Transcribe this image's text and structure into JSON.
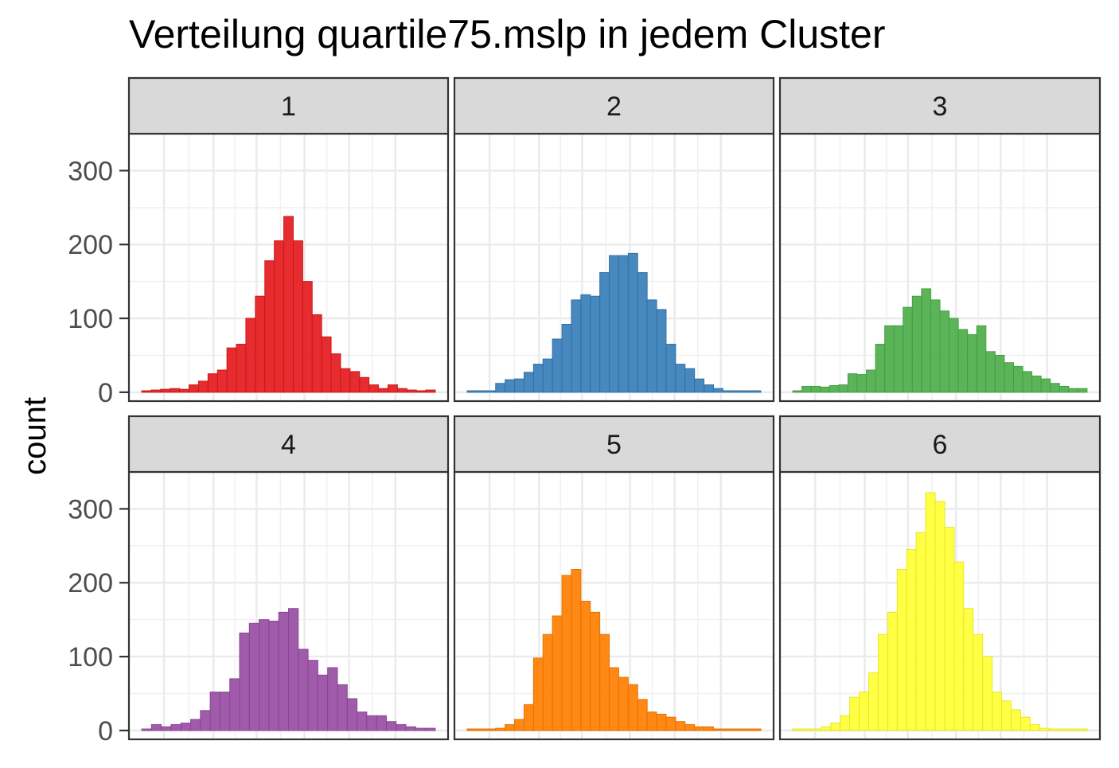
{
  "chart_data": {
    "type": "bar",
    "title": "Verteilung quartile75.mslp in jedem Cluster",
    "xlabel": "",
    "ylabel": "count",
    "ylim": [
      -12,
      350
    ],
    "yticks": [
      0,
      100,
      200,
      300
    ],
    "grid": true,
    "legend": "none",
    "facets": [
      {
        "label": "1",
        "color": "#E41A1C",
        "values": [
          2,
          3,
          4,
          5,
          4,
          10,
          15,
          25,
          30,
          60,
          65,
          100,
          130,
          178,
          205,
          238,
          205,
          150,
          105,
          75,
          52,
          32,
          28,
          20,
          10,
          5,
          10,
          5,
          3,
          2,
          3
        ]
      },
      {
        "label": "2",
        "color": "#377EB8",
        "values": [
          2,
          2,
          2,
          12,
          17,
          18,
          27,
          38,
          45,
          72,
          92,
          125,
          132,
          130,
          162,
          185,
          185,
          188,
          162,
          125,
          112,
          65,
          38,
          32,
          18,
          10,
          5,
          2,
          2,
          2,
          2
        ]
      },
      {
        "label": "3",
        "color": "#4DAF4A",
        "values": [
          2,
          8,
          8,
          7,
          9,
          10,
          25,
          24,
          30,
          65,
          90,
          90,
          115,
          130,
          140,
          125,
          110,
          100,
          85,
          78,
          90,
          55,
          50,
          40,
          35,
          28,
          22,
          18,
          12,
          8,
          5,
          5
        ]
      },
      {
        "label": "4",
        "color": "#984EA3",
        "values": [
          2,
          8,
          5,
          8,
          10,
          15,
          27,
          52,
          52,
          70,
          132,
          145,
          150,
          148,
          160,
          165,
          110,
          95,
          75,
          85,
          62,
          43,
          25,
          20,
          20,
          12,
          8,
          5,
          3,
          3
        ]
      },
      {
        "label": "5",
        "color": "#FF7F00",
        "values": [
          2,
          2,
          2,
          3,
          8,
          15,
          35,
          98,
          130,
          155,
          210,
          218,
          175,
          160,
          130,
          85,
          72,
          62,
          42,
          25,
          22,
          18,
          12,
          8,
          5,
          5,
          2,
          2,
          2,
          2,
          2
        ]
      },
      {
        "label": "6",
        "color": "#FFFF33",
        "values": [
          2,
          2,
          2,
          5,
          10,
          20,
          45,
          52,
          78,
          130,
          160,
          218,
          245,
          268,
          322,
          310,
          275,
          228,
          165,
          130,
          100,
          52,
          40,
          28,
          18,
          8,
          3,
          2,
          2,
          2,
          2
        ]
      }
    ]
  }
}
